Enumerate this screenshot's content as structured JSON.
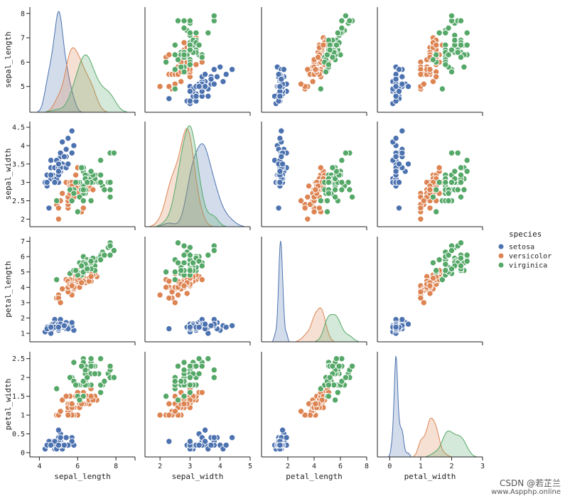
{
  "chart_data": {
    "type": "scatter",
    "variables": [
      "sepal_length",
      "sepal_width",
      "petal_length",
      "petal_width"
    ],
    "ranges": {
      "sepal_length": [
        4.1,
        8.1
      ],
      "sepal_width": [
        1.9,
        4.55
      ],
      "petal_length": [
        0.7,
        7.05
      ],
      "petal_width": [
        -0.01,
        2.58
      ]
    },
    "xlim": {
      "sepal_length": [
        3.5,
        9.0
      ],
      "sepal_width": [
        1.5,
        5.0
      ],
      "petal_length": [
        0,
        8
      ],
      "petal_width": [
        -0.4,
        3.0
      ]
    },
    "yticks": {
      "sepal_length": [
        5,
        6,
        7,
        8
      ],
      "sepal_width": [
        2.0,
        2.5,
        3.0,
        3.5,
        4.0,
        4.5
      ],
      "petal_length": [
        1,
        2,
        3,
        4,
        5,
        6,
        7
      ],
      "petal_width": [
        0.0,
        0.5,
        1.0,
        1.5,
        2.0,
        2.5
      ]
    },
    "xticks": {
      "sepal_length": [
        4,
        6,
        8
      ],
      "sepal_width": [
        2,
        3,
        4,
        5
      ],
      "petal_length": [
        2,
        4,
        6,
        8
      ],
      "petal_width": [
        0,
        1,
        2,
        3
      ]
    },
    "diag_kind": "kde",
    "legend": {
      "title": "species",
      "entries": [
        "setosa",
        "versicolor",
        "virginica"
      ],
      "placement": "right"
    },
    "series": [
      {
        "name": "setosa",
        "color": "#4c72b0",
        "sepal_length": [
          5.1,
          4.9,
          4.7,
          4.6,
          5.0,
          5.4,
          4.6,
          5.0,
          4.4,
          4.9,
          5.4,
          4.8,
          4.8,
          4.3,
          5.8,
          5.7,
          5.4,
          5.1,
          5.7,
          5.1,
          5.4,
          5.1,
          4.6,
          5.1,
          4.8,
          5.0,
          5.0,
          5.2,
          5.2,
          4.7,
          4.8,
          5.4,
          5.2,
          5.5,
          4.9,
          5.0,
          5.5,
          4.9,
          4.4,
          5.1,
          5.0,
          4.5,
          4.4,
          5.0,
          5.1,
          4.8,
          5.1,
          4.6,
          5.3,
          5.0
        ],
        "sepal_width": [
          3.5,
          3.0,
          3.2,
          3.1,
          3.6,
          3.9,
          3.4,
          3.4,
          2.9,
          3.1,
          3.7,
          3.4,
          3.0,
          3.0,
          4.0,
          4.4,
          3.9,
          3.5,
          3.8,
          3.8,
          3.4,
          3.7,
          3.6,
          3.3,
          3.4,
          3.0,
          3.4,
          3.5,
          3.4,
          3.2,
          3.1,
          3.4,
          4.1,
          4.2,
          3.1,
          3.2,
          3.5,
          3.6,
          3.0,
          3.4,
          3.5,
          2.3,
          3.2,
          3.5,
          3.8,
          3.0,
          3.8,
          3.2,
          3.7,
          3.3
        ],
        "petal_length": [
          1.4,
          1.4,
          1.3,
          1.5,
          1.4,
          1.7,
          1.4,
          1.5,
          1.4,
          1.5,
          1.5,
          1.6,
          1.4,
          1.1,
          1.2,
          1.5,
          1.3,
          1.4,
          1.7,
          1.5,
          1.7,
          1.5,
          1.0,
          1.7,
          1.9,
          1.6,
          1.6,
          1.5,
          1.4,
          1.6,
          1.6,
          1.5,
          1.5,
          1.4,
          1.5,
          1.2,
          1.3,
          1.4,
          1.3,
          1.5,
          1.3,
          1.3,
          1.3,
          1.6,
          1.9,
          1.4,
          1.6,
          1.4,
          1.5,
          1.4
        ],
        "petal_width": [
          0.2,
          0.2,
          0.2,
          0.2,
          0.2,
          0.4,
          0.3,
          0.2,
          0.2,
          0.1,
          0.2,
          0.2,
          0.1,
          0.1,
          0.2,
          0.4,
          0.4,
          0.3,
          0.3,
          0.3,
          0.2,
          0.4,
          0.2,
          0.5,
          0.2,
          0.2,
          0.4,
          0.2,
          0.2,
          0.2,
          0.2,
          0.4,
          0.1,
          0.2,
          0.2,
          0.2,
          0.2,
          0.1,
          0.2,
          0.2,
          0.3,
          0.3,
          0.2,
          0.6,
          0.4,
          0.3,
          0.2,
          0.2,
          0.2,
          0.2
        ]
      },
      {
        "name": "versicolor",
        "color": "#dd8452",
        "sepal_length": [
          7.0,
          6.4,
          6.9,
          5.5,
          6.5,
          5.7,
          6.3,
          4.9,
          6.6,
          5.2,
          5.0,
          5.9,
          6.0,
          6.1,
          5.6,
          6.7,
          5.6,
          5.8,
          6.2,
          5.6,
          5.9,
          6.1,
          6.3,
          6.1,
          6.4,
          6.6,
          6.8,
          6.7,
          6.0,
          5.7,
          5.5,
          5.5,
          5.8,
          6.0,
          5.4,
          6.0,
          6.7,
          6.3,
          5.6,
          5.5,
          5.5,
          6.1,
          5.8,
          5.0,
          5.6,
          5.7,
          5.7,
          6.2,
          5.1,
          5.7
        ],
        "sepal_width": [
          3.2,
          3.2,
          3.1,
          2.3,
          2.8,
          2.8,
          3.3,
          2.4,
          2.9,
          2.7,
          2.0,
          3.0,
          2.2,
          2.9,
          2.9,
          3.1,
          3.0,
          2.7,
          2.2,
          2.5,
          3.2,
          2.8,
          2.5,
          2.8,
          2.9,
          3.0,
          2.8,
          3.0,
          2.9,
          2.6,
          2.4,
          2.4,
          2.7,
          2.7,
          3.0,
          3.4,
          3.1,
          2.3,
          3.0,
          2.5,
          2.6,
          3.0,
          2.6,
          2.3,
          2.7,
          3.0,
          2.9,
          2.9,
          2.5,
          2.8
        ],
        "petal_length": [
          4.7,
          4.5,
          4.9,
          4.0,
          4.6,
          4.5,
          4.7,
          3.3,
          4.6,
          3.9,
          3.5,
          4.2,
          4.0,
          4.7,
          3.6,
          4.4,
          4.5,
          4.1,
          4.5,
          3.9,
          4.8,
          4.0,
          4.9,
          4.7,
          4.3,
          4.4,
          4.8,
          5.0,
          4.5,
          3.5,
          3.8,
          3.7,
          3.9,
          5.1,
          4.5,
          4.5,
          4.7,
          4.4,
          4.1,
          4.0,
          4.4,
          4.6,
          4.0,
          3.3,
          4.2,
          4.2,
          4.2,
          4.3,
          3.0,
          4.1
        ],
        "petal_width": [
          1.4,
          1.5,
          1.5,
          1.3,
          1.5,
          1.3,
          1.6,
          1.0,
          1.3,
          1.4,
          1.0,
          1.5,
          1.0,
          1.4,
          1.3,
          1.4,
          1.5,
          1.0,
          1.5,
          1.1,
          1.8,
          1.3,
          1.5,
          1.2,
          1.3,
          1.4,
          1.4,
          1.7,
          1.5,
          1.0,
          1.1,
          1.0,
          1.2,
          1.6,
          1.5,
          1.6,
          1.5,
          1.3,
          1.3,
          1.3,
          1.2,
          1.4,
          1.2,
          1.0,
          1.3,
          1.2,
          1.3,
          1.3,
          1.1,
          1.3
        ]
      },
      {
        "name": "virginica",
        "color": "#55a868",
        "sepal_length": [
          6.3,
          5.8,
          7.1,
          6.3,
          6.5,
          7.6,
          4.9,
          7.3,
          6.7,
          7.2,
          6.5,
          6.4,
          6.8,
          5.7,
          5.8,
          6.4,
          6.5,
          7.7,
          7.7,
          6.0,
          6.9,
          5.6,
          7.7,
          6.3,
          6.7,
          7.2,
          6.2,
          6.1,
          6.4,
          7.2,
          7.4,
          7.9,
          6.4,
          6.3,
          6.1,
          7.7,
          6.3,
          6.4,
          6.0,
          6.9,
          6.7,
          6.9,
          5.8,
          6.8,
          6.7,
          6.7,
          6.3,
          6.5,
          6.2,
          5.9
        ],
        "sepal_width": [
          3.3,
          2.7,
          3.0,
          2.9,
          3.0,
          3.0,
          2.5,
          2.9,
          2.5,
          3.6,
          3.2,
          2.7,
          3.0,
          2.5,
          2.8,
          3.2,
          3.0,
          3.8,
          2.6,
          2.2,
          3.2,
          2.8,
          2.8,
          2.7,
          3.3,
          3.2,
          2.8,
          3.0,
          2.8,
          3.0,
          2.8,
          3.8,
          2.8,
          2.8,
          2.6,
          3.0,
          3.4,
          3.1,
          3.0,
          3.1,
          3.1,
          3.1,
          2.7,
          3.2,
          3.3,
          3.0,
          2.5,
          3.0,
          3.4,
          3.0
        ],
        "petal_length": [
          6.0,
          5.1,
          5.9,
          5.6,
          5.8,
          6.6,
          4.5,
          6.3,
          5.8,
          6.1,
          5.1,
          5.3,
          5.5,
          5.0,
          5.1,
          5.3,
          5.5,
          6.7,
          6.9,
          5.0,
          5.7,
          4.9,
          6.7,
          4.9,
          5.7,
          6.0,
          4.8,
          4.9,
          5.6,
          5.8,
          6.1,
          6.4,
          5.6,
          5.1,
          5.6,
          6.1,
          5.6,
          5.5,
          4.8,
          5.4,
          5.6,
          5.1,
          5.1,
          5.9,
          5.7,
          5.2,
          5.0,
          5.2,
          5.4,
          5.1
        ],
        "petal_width": [
          2.5,
          1.9,
          2.1,
          1.8,
          2.2,
          2.1,
          1.7,
          1.8,
          1.8,
          2.5,
          2.0,
          1.9,
          2.1,
          2.0,
          2.4,
          2.3,
          1.8,
          2.2,
          2.3,
          1.5,
          2.3,
          2.0,
          2.0,
          1.8,
          2.1,
          1.8,
          1.8,
          1.8,
          2.1,
          1.6,
          1.9,
          2.0,
          2.2,
          1.5,
          1.4,
          2.3,
          2.4,
          1.8,
          1.8,
          2.1,
          2.4,
          2.3,
          1.9,
          2.3,
          2.5,
          2.3,
          1.9,
          2.0,
          2.3,
          1.8
        ]
      }
    ]
  },
  "watermark": {
    "line1": "CSDN @若芷兰",
    "line2": "www.Aspphp.online"
  }
}
